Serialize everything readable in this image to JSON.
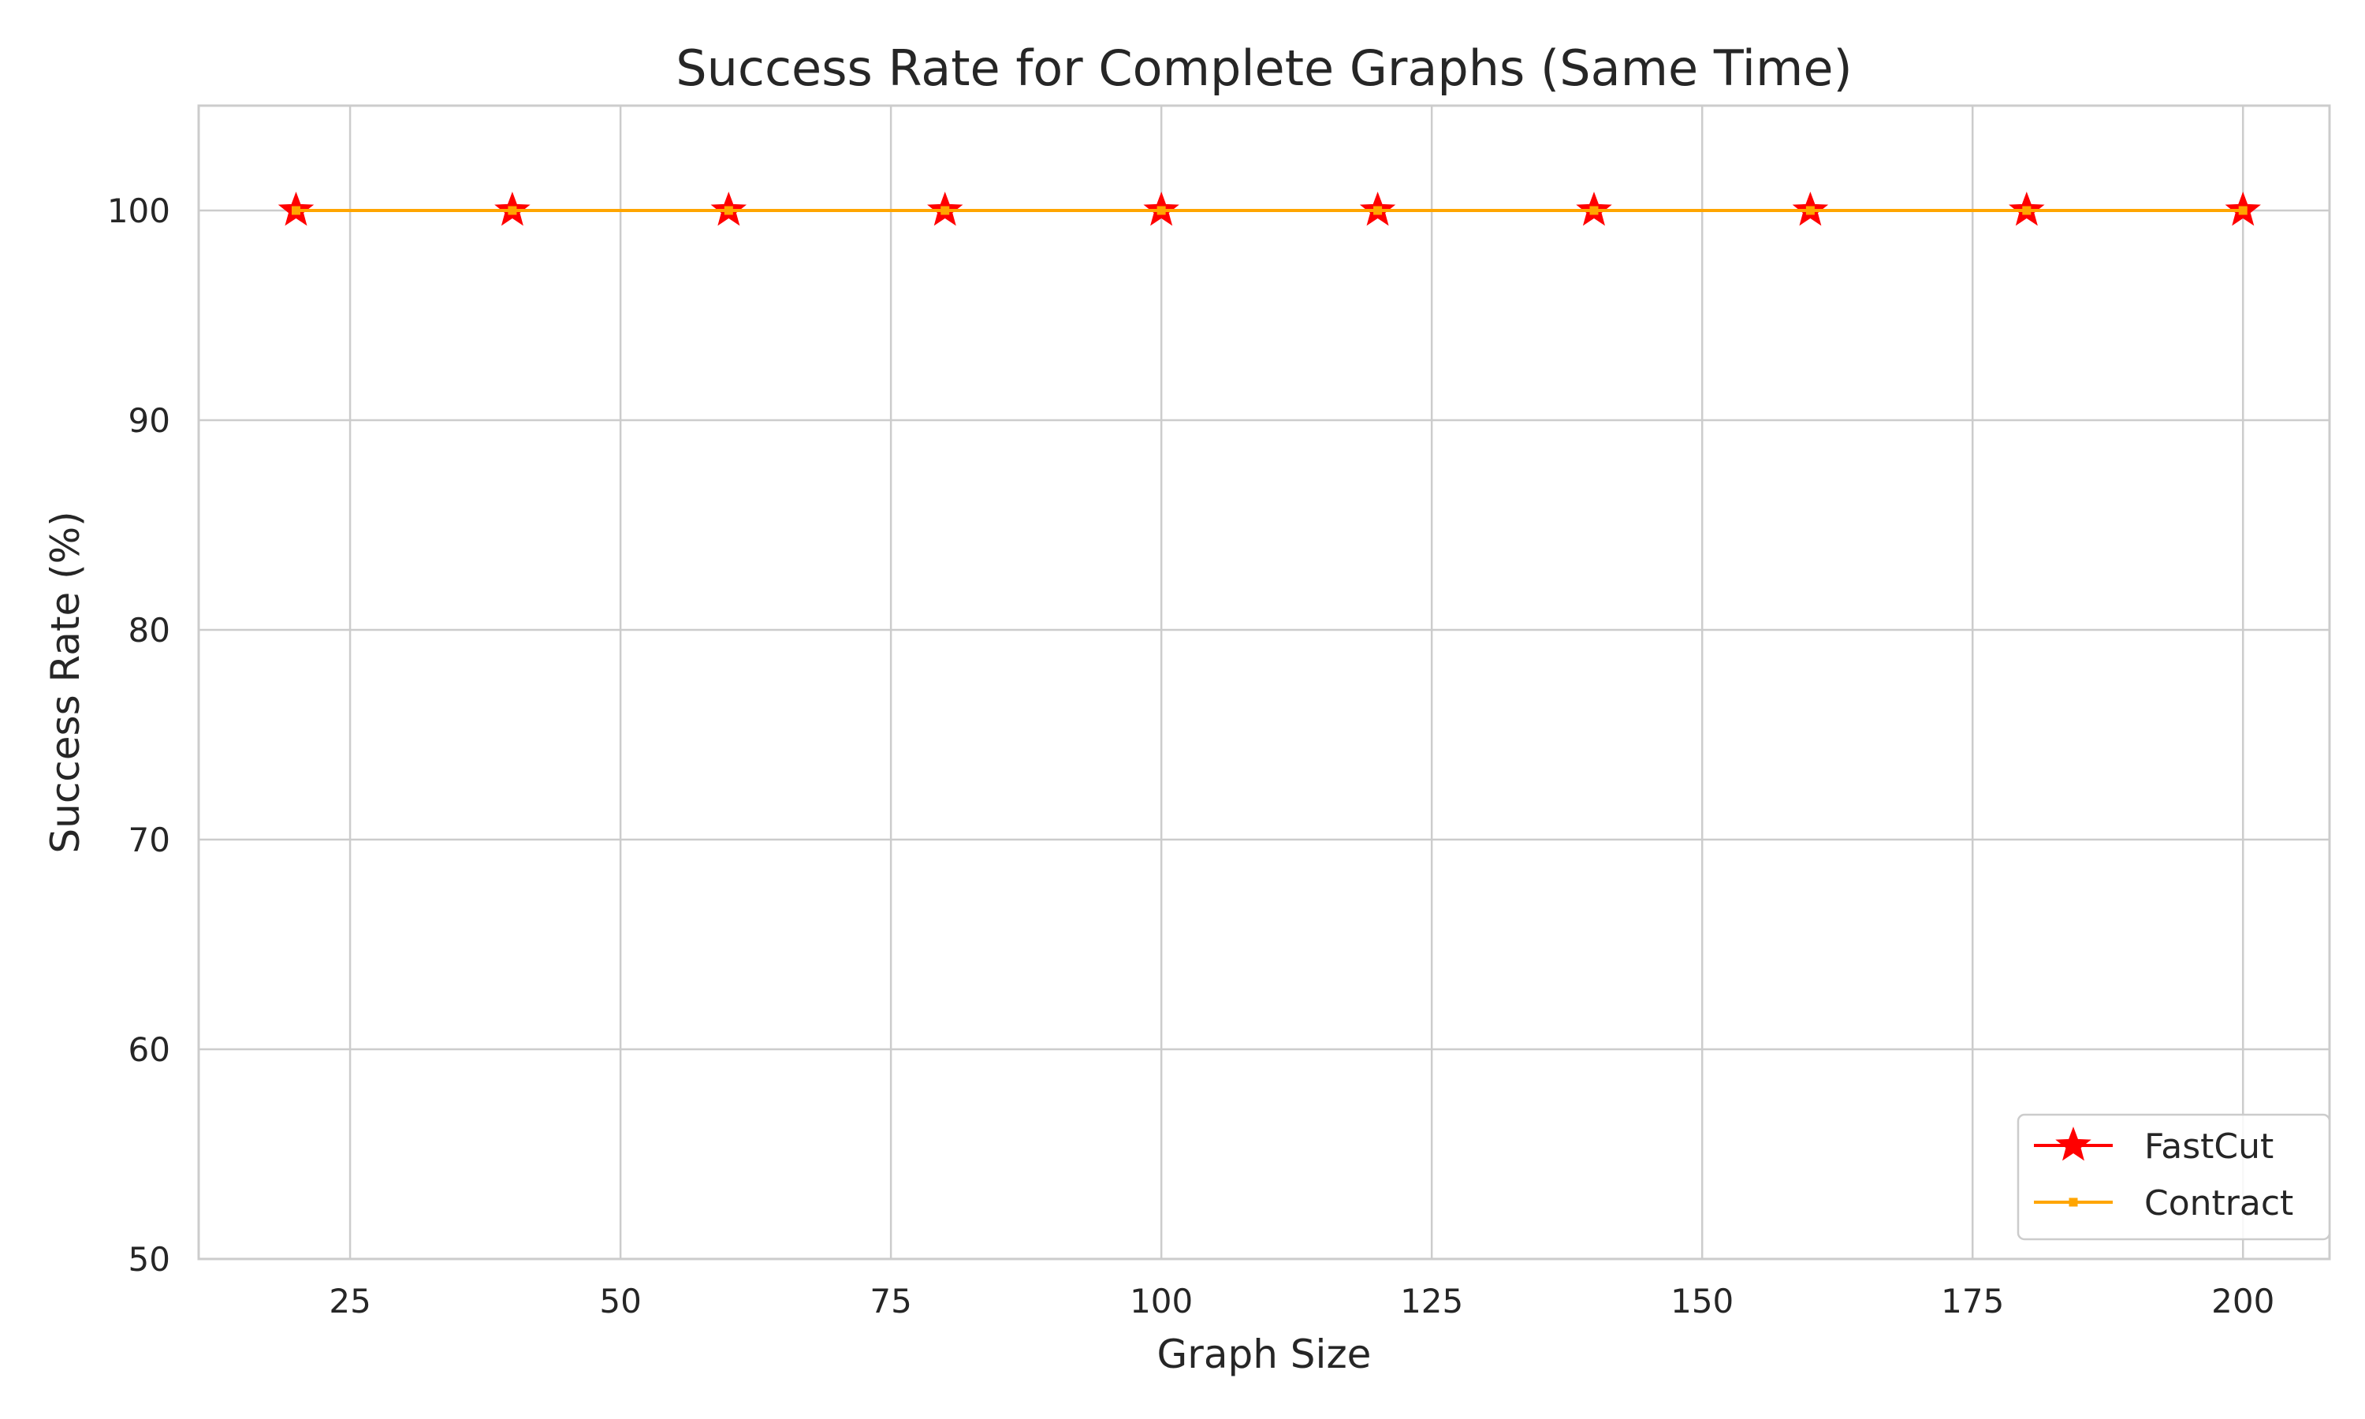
{
  "chart_data": {
    "type": "line",
    "title": "Success Rate for Complete Graphs (Same Time)",
    "xlabel": "Graph Size",
    "ylabel": "Success Rate (%)",
    "xlim": [
      11,
      208
    ],
    "ylim": [
      50,
      105
    ],
    "xticks": [
      25,
      50,
      75,
      100,
      125,
      150,
      175,
      200
    ],
    "yticks": [
      50,
      60,
      70,
      80,
      90,
      100
    ],
    "grid": true,
    "legend_position": "bottom-right",
    "x": [
      20,
      40,
      60,
      80,
      100,
      120,
      140,
      160,
      180,
      200
    ],
    "series": [
      {
        "name": "FastCut",
        "values": [
          100,
          100,
          100,
          100,
          100,
          100,
          100,
          100,
          100,
          100
        ],
        "color": "#ff0000",
        "marker": "star"
      },
      {
        "name": "Contract",
        "values": [
          100,
          100,
          100,
          100,
          100,
          100,
          100,
          100,
          100,
          100
        ],
        "color": "#ffa500",
        "marker": "square"
      }
    ]
  }
}
